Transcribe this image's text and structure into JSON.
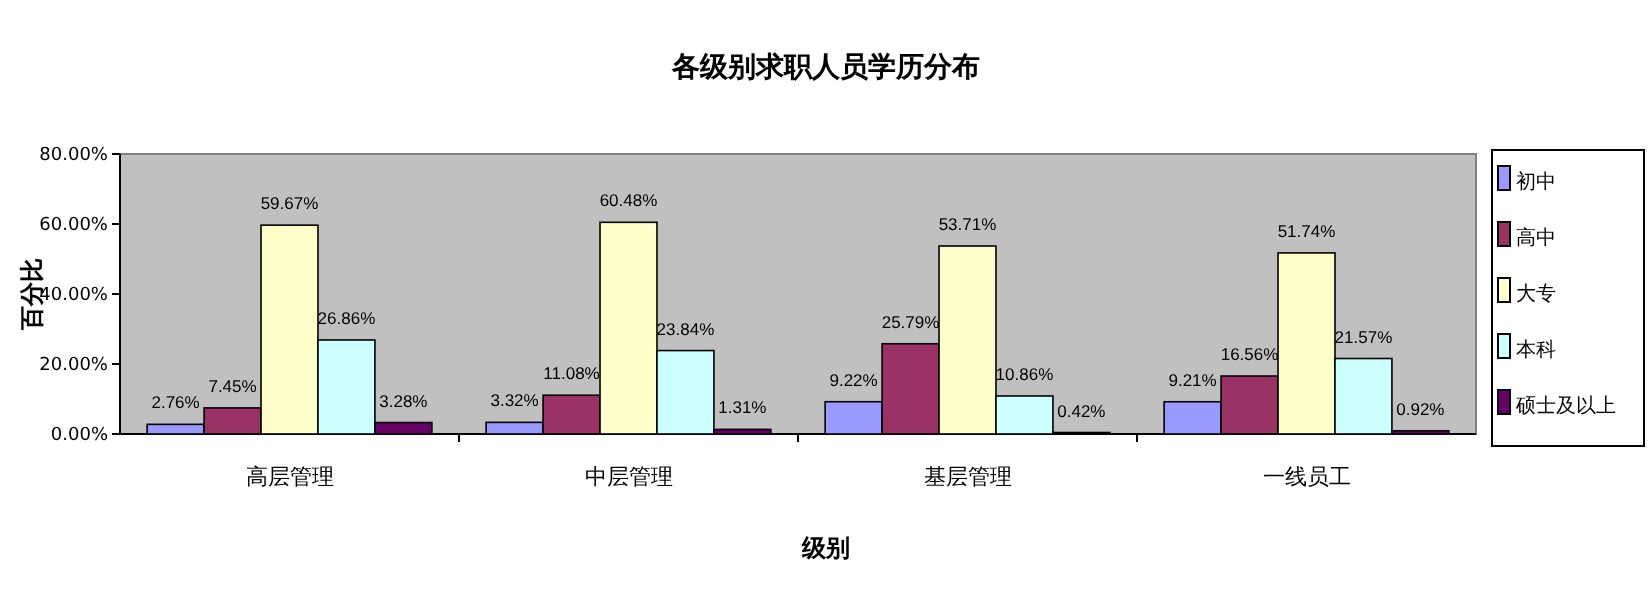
{
  "chart_data": {
    "type": "bar",
    "title": "各级别求职人员学历分布",
    "xlabel": "级别",
    "ylabel": "百分比",
    "categories": [
      "高层管理",
      "中层管理",
      "基层管理",
      "一线员工"
    ],
    "series": [
      {
        "name": "初中",
        "color": "#9999ff",
        "values": [
          2.76,
          3.32,
          9.22,
          9.21
        ],
        "value_labels": [
          "2.76%",
          "3.32%",
          "9.22%",
          "9.21%"
        ]
      },
      {
        "name": "高中",
        "color": "#993366",
        "values": [
          7.45,
          11.08,
          25.79,
          16.56
        ],
        "value_labels": [
          "7.45%",
          "11.08%",
          "25.79%",
          "16.56%"
        ]
      },
      {
        "name": "大专",
        "color": "#ffffcc",
        "values": [
          59.67,
          60.48,
          53.71,
          51.74
        ],
        "value_labels": [
          "59.67%",
          "60.48%",
          "53.71%",
          "51.74%"
        ]
      },
      {
        "name": "本科",
        "color": "#ccffff",
        "values": [
          26.86,
          23.84,
          10.86,
          21.57
        ],
        "value_labels": [
          "26.86%",
          "23.84%",
          "10.86%",
          "21.57%"
        ]
      },
      {
        "name": "硕士及以上",
        "color": "#660066",
        "values": [
          3.28,
          1.31,
          0.42,
          0.92
        ],
        "value_labels": [
          "3.28%",
          "1.31%",
          "0.42%",
          "0.92%"
        ]
      }
    ],
    "ylim": [
      0,
      80
    ],
    "yticks": [
      {
        "value": 0,
        "label": "0.00%"
      },
      {
        "value": 20,
        "label": "20.00%"
      },
      {
        "value": 40,
        "label": "40.00%"
      },
      {
        "value": 60,
        "label": "60.00%"
      },
      {
        "value": 80,
        "label": "80.00%"
      }
    ],
    "grid": false,
    "legend": "right"
  }
}
